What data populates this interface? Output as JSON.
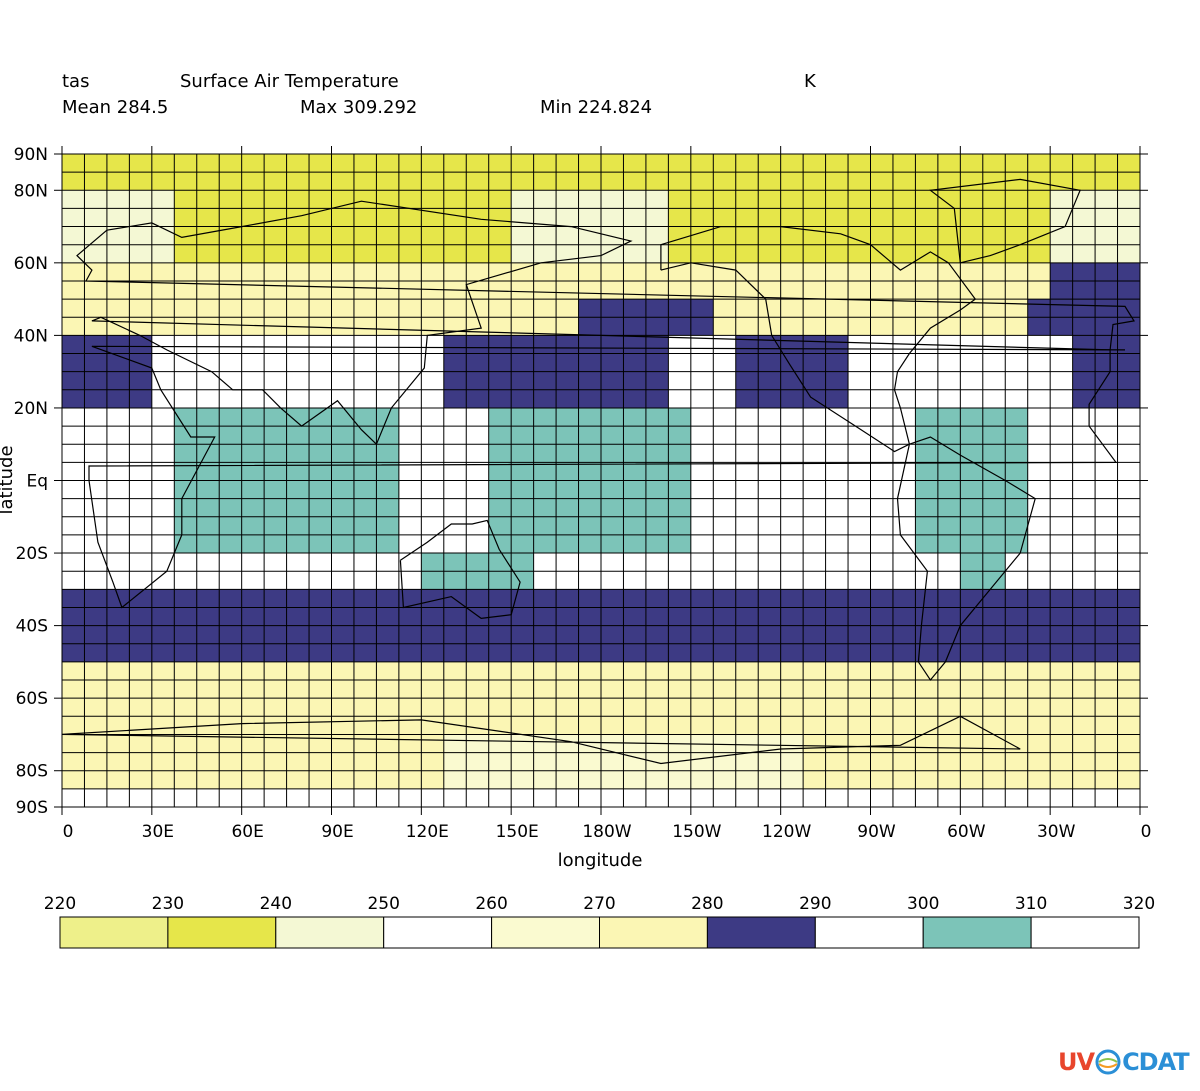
{
  "header": {
    "var_name": "tas",
    "long_name": "Surface Air Temperature",
    "units": "K",
    "mean": "Mean 284.5",
    "max": "Max 309.292",
    "min": "Min 224.824"
  },
  "chart_data": {
    "type": "heatmap",
    "xlabel": "longitude",
    "ylabel": "latitude",
    "x_ticks": [
      "0",
      "30E",
      "60E",
      "90E",
      "120E",
      "150E",
      "180W",
      "150W",
      "120W",
      "90W",
      "60W",
      "30W",
      "0"
    ],
    "y_ticks": [
      "90N",
      "80N",
      "60N",
      "40N",
      "20N",
      "Eq",
      "20S",
      "40S",
      "60S",
      "80S",
      "90S"
    ],
    "lon_range": [
      0,
      360
    ],
    "lat_range": [
      -90,
      90
    ],
    "legend_levels": [
      "220",
      "230",
      "240",
      "250",
      "260",
      "270",
      "280",
      "290",
      "300",
      "310",
      "320"
    ],
    "legend_colors": [
      "#eef08a",
      "#e6e64a",
      "#f4f8d4",
      "#ffffff",
      "#fafad0",
      "#fbf6b4",
      "#3d3a84",
      "#ffffff",
      "#7cc4b8",
      "#ffffff"
    ],
    "grid": true
  },
  "logo": {
    "text_uv": "UV",
    "text_cdat": "CDAT",
    "colors": {
      "u": "#e8452c",
      "v": "#f59b22",
      "c": "#8bc34a",
      "d": "#2b8fd6",
      "a": "#9c27b0",
      "t": "#e91e63"
    }
  }
}
